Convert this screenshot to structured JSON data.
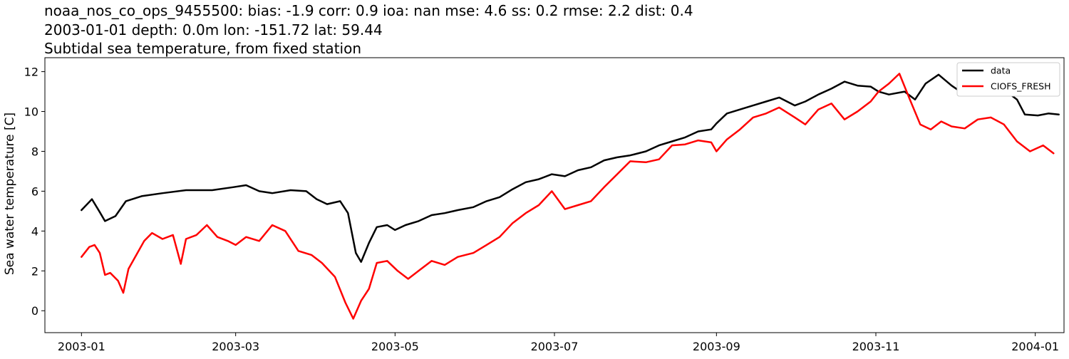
{
  "chart_data": {
    "type": "line",
    "title_lines": [
      "noaa_nos_co_ops_9455500: bias: -1.9  corr: 0.9  ioa: nan  mse: 4.6  ss: 0.2  rmse: 2.2  dist: 0.4",
      "2003-01-01 depth: 0.0m lon: -151.72 lat: 59.44",
      "Subtidal sea temperature, from fixed station"
    ],
    "xlabel": "",
    "ylabel": "Sea water temperature [C]",
    "xlim": [
      "2002-12-18",
      "2004-01-12"
    ],
    "ylim": [
      -1.1,
      12.7
    ],
    "x_ticks": [
      "2003-01",
      "2003-03",
      "2003-05",
      "2003-07",
      "2003-09",
      "2003-11",
      "2004-01"
    ],
    "y_ticks": [
      0,
      2,
      4,
      6,
      8,
      10,
      12
    ],
    "grid": false,
    "legend_position": "top-right",
    "series": [
      {
        "name": "data",
        "color": "#000000",
        "points": [
          [
            "2003-01-01",
            5.05
          ],
          [
            "2003-01-05",
            5.6
          ],
          [
            "2003-01-08",
            4.95
          ],
          [
            "2003-01-10",
            4.5
          ],
          [
            "2003-01-14",
            4.75
          ],
          [
            "2003-01-18",
            5.5
          ],
          [
            "2003-01-24",
            5.75
          ],
          [
            "2003-02-01",
            5.9
          ],
          [
            "2003-02-10",
            6.05
          ],
          [
            "2003-02-20",
            6.05
          ],
          [
            "2003-02-28",
            6.2
          ],
          [
            "2003-03-05",
            6.3
          ],
          [
            "2003-03-10",
            6.0
          ],
          [
            "2003-03-15",
            5.9
          ],
          [
            "2003-03-22",
            6.05
          ],
          [
            "2003-03-28",
            6.0
          ],
          [
            "2003-04-01",
            5.6
          ],
          [
            "2003-04-05",
            5.35
          ],
          [
            "2003-04-10",
            5.5
          ],
          [
            "2003-04-13",
            4.9
          ],
          [
            "2003-04-16",
            2.9
          ],
          [
            "2003-04-18",
            2.45
          ],
          [
            "2003-04-21",
            3.4
          ],
          [
            "2003-04-24",
            4.2
          ],
          [
            "2003-04-28",
            4.3
          ],
          [
            "2003-05-01",
            4.05
          ],
          [
            "2003-05-05",
            4.3
          ],
          [
            "2003-05-10",
            4.5
          ],
          [
            "2003-05-15",
            4.8
          ],
          [
            "2003-05-20",
            4.9
          ],
          [
            "2003-05-25",
            5.05
          ],
          [
            "2003-05-31",
            5.2
          ],
          [
            "2003-06-05",
            5.5
          ],
          [
            "2003-06-10",
            5.7
          ],
          [
            "2003-06-15",
            6.1
          ],
          [
            "2003-06-20",
            6.45
          ],
          [
            "2003-06-25",
            6.6
          ],
          [
            "2003-06-30",
            6.85
          ],
          [
            "2003-07-05",
            6.75
          ],
          [
            "2003-07-10",
            7.05
          ],
          [
            "2003-07-15",
            7.2
          ],
          [
            "2003-07-20",
            7.55
          ],
          [
            "2003-07-25",
            7.7
          ],
          [
            "2003-07-30",
            7.8
          ],
          [
            "2003-08-05",
            8.0
          ],
          [
            "2003-08-10",
            8.3
          ],
          [
            "2003-08-15",
            8.5
          ],
          [
            "2003-08-20",
            8.7
          ],
          [
            "2003-08-25",
            9.0
          ],
          [
            "2003-08-30",
            9.1
          ],
          [
            "2003-09-01",
            9.4
          ],
          [
            "2003-09-05",
            9.9
          ],
          [
            "2003-09-10",
            10.1
          ],
          [
            "2003-09-15",
            10.3
          ],
          [
            "2003-09-20",
            10.5
          ],
          [
            "2003-09-25",
            10.7
          ],
          [
            "2003-10-01",
            10.3
          ],
          [
            "2003-10-05",
            10.5
          ],
          [
            "2003-10-10",
            10.85
          ],
          [
            "2003-10-15",
            11.15
          ],
          [
            "2003-10-20",
            11.5
          ],
          [
            "2003-10-25",
            11.3
          ],
          [
            "2003-10-30",
            11.25
          ],
          [
            "2003-11-02",
            11.0
          ],
          [
            "2003-11-06",
            10.85
          ],
          [
            "2003-11-12",
            11.0
          ],
          [
            "2003-11-16",
            10.6
          ],
          [
            "2003-11-20",
            11.4
          ],
          [
            "2003-11-25",
            11.85
          ],
          [
            "2003-11-30",
            11.3
          ],
          [
            "2003-12-05",
            10.85
          ],
          [
            "2003-12-10",
            11.1
          ],
          [
            "2003-12-15",
            11.3
          ],
          [
            "2003-12-20",
            11.1
          ],
          [
            "2003-12-25",
            10.6
          ],
          [
            "2003-12-28",
            9.85
          ],
          [
            "2004-01-02",
            9.8
          ],
          [
            "2004-01-06",
            9.9
          ],
          [
            "2004-01-10",
            9.85
          ]
        ]
      },
      {
        "name": "CIOFS_FRESH",
        "color": "#ff0000",
        "points": [
          [
            "2003-01-01",
            2.7
          ],
          [
            "2003-01-04",
            3.2
          ],
          [
            "2003-01-06",
            3.3
          ],
          [
            "2003-01-08",
            2.9
          ],
          [
            "2003-01-10",
            1.8
          ],
          [
            "2003-01-12",
            1.9
          ],
          [
            "2003-01-15",
            1.5
          ],
          [
            "2003-01-17",
            0.9
          ],
          [
            "2003-01-19",
            2.1
          ],
          [
            "2003-01-22",
            2.8
          ],
          [
            "2003-01-25",
            3.5
          ],
          [
            "2003-01-28",
            3.9
          ],
          [
            "2003-02-01",
            3.6
          ],
          [
            "2003-02-05",
            3.8
          ],
          [
            "2003-02-08",
            2.35
          ],
          [
            "2003-02-10",
            3.6
          ],
          [
            "2003-02-14",
            3.8
          ],
          [
            "2003-02-18",
            4.3
          ],
          [
            "2003-02-22",
            3.7
          ],
          [
            "2003-02-26",
            3.5
          ],
          [
            "2003-03-01",
            3.3
          ],
          [
            "2003-03-05",
            3.7
          ],
          [
            "2003-03-10",
            3.5
          ],
          [
            "2003-03-15",
            4.3
          ],
          [
            "2003-03-20",
            4.0
          ],
          [
            "2003-03-25",
            3.0
          ],
          [
            "2003-03-30",
            2.8
          ],
          [
            "2003-04-03",
            2.4
          ],
          [
            "2003-04-08",
            1.7
          ],
          [
            "2003-04-12",
            0.4
          ],
          [
            "2003-04-15",
            -0.4
          ],
          [
            "2003-04-18",
            0.5
          ],
          [
            "2003-04-21",
            1.1
          ],
          [
            "2003-04-24",
            2.4
          ],
          [
            "2003-04-28",
            2.5
          ],
          [
            "2003-05-02",
            2.0
          ],
          [
            "2003-05-06",
            1.6
          ],
          [
            "2003-05-10",
            2.0
          ],
          [
            "2003-05-15",
            2.5
          ],
          [
            "2003-05-20",
            2.3
          ],
          [
            "2003-05-25",
            2.7
          ],
          [
            "2003-05-31",
            2.9
          ],
          [
            "2003-06-05",
            3.3
          ],
          [
            "2003-06-10",
            3.7
          ],
          [
            "2003-06-15",
            4.4
          ],
          [
            "2003-06-20",
            4.9
          ],
          [
            "2003-06-25",
            5.3
          ],
          [
            "2003-06-30",
            6.0
          ],
          [
            "2003-07-05",
            5.1
          ],
          [
            "2003-07-10",
            5.3
          ],
          [
            "2003-07-15",
            5.5
          ],
          [
            "2003-07-20",
            6.2
          ],
          [
            "2003-07-25",
            6.85
          ],
          [
            "2003-07-30",
            7.5
          ],
          [
            "2003-08-05",
            7.45
          ],
          [
            "2003-08-10",
            7.6
          ],
          [
            "2003-08-15",
            8.3
          ],
          [
            "2003-08-20",
            8.35
          ],
          [
            "2003-08-25",
            8.55
          ],
          [
            "2003-08-30",
            8.45
          ],
          [
            "2003-09-01",
            8.0
          ],
          [
            "2003-09-05",
            8.6
          ],
          [
            "2003-09-10",
            9.1
          ],
          [
            "2003-09-15",
            9.7
          ],
          [
            "2003-09-20",
            9.9
          ],
          [
            "2003-09-25",
            10.2
          ],
          [
            "2003-10-01",
            9.7
          ],
          [
            "2003-10-05",
            9.35
          ],
          [
            "2003-10-10",
            10.1
          ],
          [
            "2003-10-15",
            10.4
          ],
          [
            "2003-10-20",
            9.6
          ],
          [
            "2003-10-25",
            10.0
          ],
          [
            "2003-10-30",
            10.5
          ],
          [
            "2003-11-02",
            11.0
          ],
          [
            "2003-11-06",
            11.4
          ],
          [
            "2003-11-10",
            11.9
          ],
          [
            "2003-11-14",
            10.6
          ],
          [
            "2003-11-18",
            9.35
          ],
          [
            "2003-11-22",
            9.1
          ],
          [
            "2003-11-26",
            9.5
          ],
          [
            "2003-11-30",
            9.25
          ],
          [
            "2003-12-05",
            9.15
          ],
          [
            "2003-12-10",
            9.6
          ],
          [
            "2003-12-15",
            9.7
          ],
          [
            "2003-12-20",
            9.35
          ],
          [
            "2003-12-25",
            8.5
          ],
          [
            "2003-12-30",
            8.0
          ],
          [
            "2004-01-04",
            8.3
          ],
          [
            "2004-01-08",
            7.9
          ]
        ]
      }
    ]
  }
}
